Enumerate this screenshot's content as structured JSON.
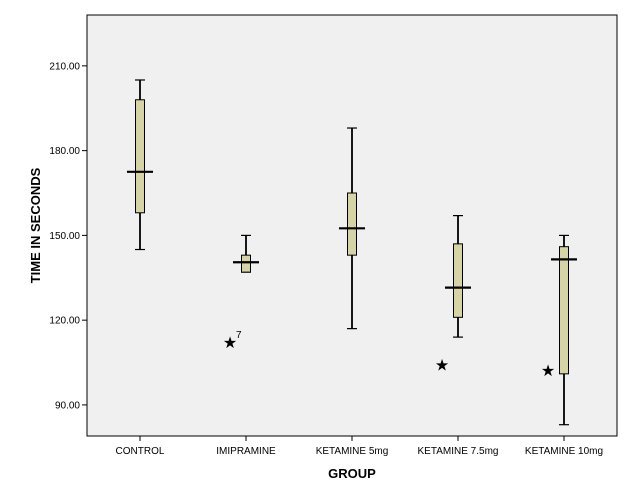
{
  "chart_data": {
    "type": "boxplot",
    "xlabel": "GROUP",
    "ylabel": "TIME IN SECONDS",
    "ylim": [
      79,
      228
    ],
    "yticks": [
      90,
      120,
      150,
      180,
      210
    ],
    "ytick_labels": [
      "90.00",
      "120.00",
      "150.00",
      "180.00",
      "210.00"
    ],
    "categories": [
      "CONTROL",
      "IMIPRAMINE",
      "KETAMINE 5mg",
      "KETAMINE 7.5mg",
      "KETAMINE 10mg"
    ],
    "boxes": [
      {
        "name": "CONTROL",
        "min": 145,
        "q1": 158,
        "median": 172.5,
        "q3": 198,
        "max": 205,
        "outliers": []
      },
      {
        "name": "IMIPRAMINE",
        "min": 137,
        "q1": 137,
        "median": 140.5,
        "q3": 143,
        "max": 150,
        "outliers": [
          {
            "value": 112,
            "label": "7"
          }
        ]
      },
      {
        "name": "KETAMINE 5mg",
        "min": 117,
        "q1": 143,
        "median": 152.5,
        "q3": 165,
        "max": 188,
        "outliers": []
      },
      {
        "name": "KETAMINE 7.5mg",
        "min": 114,
        "q1": 121,
        "median": 131.5,
        "q3": 147,
        "max": 157,
        "outliers": [
          {
            "value": 104,
            "label": ""
          }
        ]
      },
      {
        "name": "KETAMINE 10mg",
        "min": 83,
        "q1": 101,
        "median": 141.5,
        "q3": 146,
        "max": 150,
        "outliers": [
          {
            "value": 102,
            "label": ""
          }
        ]
      }
    ],
    "colors": {
      "plot_background": "#f0f0f0",
      "box_fill": "#d6d3a4",
      "stroke": "#000000"
    }
  }
}
